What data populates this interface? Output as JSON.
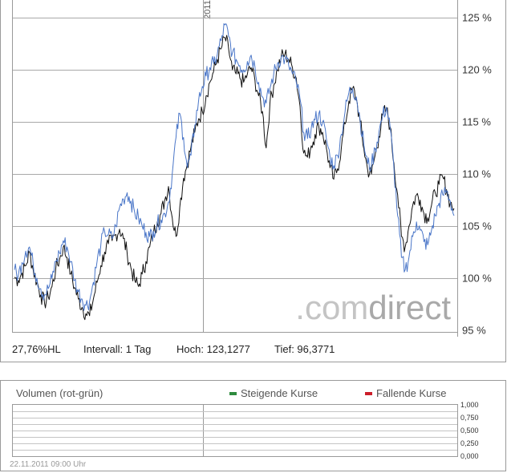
{
  "chart_data": [
    {
      "type": "line",
      "x_start": "",
      "x_ticks": [
        "2011"
      ],
      "y_ticks": [
        "125 %",
        "120 %",
        "115 %",
        "110 %",
        "105 %",
        "100 %",
        "95 %"
      ],
      "ylim": [
        95,
        126
      ],
      "grid": true,
      "series": [
        {
          "color": "#111111",
          "values": [
            100.1,
            99.8,
            100.5,
            101.2,
            102.5,
            100.8,
            99.6,
            98.4,
            97.6,
            98.2,
            99.2,
            100.9,
            101.8,
            103.0,
            102.0,
            100.4,
            99.1,
            98.0,
            97.2,
            96.6,
            96.4,
            98.0,
            99.6,
            101.2,
            102.5,
            103.3,
            103.6,
            104.2,
            104.7,
            103.8,
            102.4,
            101.0,
            99.8,
            99.2,
            100.4,
            101.6,
            103.0,
            104.3,
            105.4,
            106.2,
            107.5,
            108.8,
            105.8,
            104.0,
            106.8,
            109.6,
            111.0,
            112.6,
            114.0,
            115.3,
            116.0,
            117.5,
            118.8,
            119.8,
            121.0,
            122.0,
            123.1,
            122.0,
            120.0,
            119.6,
            119.2,
            118.8,
            119.6,
            120.2,
            119.0,
            117.5,
            116.0,
            112.5,
            116.8,
            118.5,
            120.0,
            121.2,
            121.5,
            121.0,
            120.2,
            119.2,
            116.5,
            112.0,
            111.6,
            112.7,
            113.8,
            114.6,
            114.0,
            112.5,
            110.6,
            109.5,
            110.5,
            112.5,
            114.8,
            117.0,
            118.2,
            117.2,
            115.0,
            112.4,
            110.4,
            110.0,
            111.8,
            113.6,
            115.6,
            116.2,
            114.5,
            111.0,
            108.0,
            104.0,
            103.0,
            105.0,
            107.0,
            108.0,
            107.5,
            106.2,
            105.8,
            107.0,
            108.2,
            109.0,
            109.7,
            108.5,
            107.2,
            106.7
          ]
        },
        {
          "color": "#4a76c8",
          "values": [
            100.8,
            100.2,
            101.5,
            102.6,
            103.0,
            101.3,
            100.0,
            99.0,
            98.4,
            99.0,
            100.0,
            101.6,
            102.4,
            103.6,
            103.0,
            101.6,
            99.8,
            98.7,
            98.0,
            97.4,
            97.8,
            99.6,
            101.6,
            103.2,
            104.5,
            104.2,
            103.8,
            105.0,
            106.8,
            107.6,
            108.2,
            107.4,
            106.3,
            105.8,
            105.0,
            104.4,
            104.0,
            104.5,
            105.2,
            105.6,
            106.2,
            107.3,
            110.0,
            113.5,
            115.8,
            113.5,
            110.6,
            111.8,
            114.7,
            117.0,
            118.4,
            119.4,
            120.2,
            120.6,
            121.5,
            122.8,
            124.3,
            123.2,
            121.6,
            121.0,
            120.4,
            120.0,
            120.8,
            121.4,
            120.3,
            118.8,
            117.4,
            116.8,
            118.2,
            119.6,
            120.6,
            121.2,
            121.0,
            120.4,
            119.6,
            118.8,
            117.2,
            114.0,
            113.4,
            114.4,
            115.2,
            115.8,
            115.0,
            113.4,
            111.6,
            110.8,
            111.8,
            113.8,
            116.0,
            117.8,
            118.2,
            117.4,
            115.2,
            112.8,
            111.0,
            110.8,
            112.4,
            114.0,
            115.6,
            116.4,
            114.4,
            110.5,
            106.0,
            102.0,
            100.8,
            102.0,
            104.0,
            105.4,
            104.6,
            103.5,
            103.2,
            104.6,
            106.0,
            107.2,
            108.0,
            108.4,
            107.4,
            106.0
          ]
        }
      ],
      "stats": {
        "hl": "27,76%HL",
        "interval": "Intervall: 1 Tag",
        "high": "Hoch: 123,1277",
        "low": "Tief: 96,3771"
      },
      "watermark": {
        "gray": ".com",
        "dark": "direct"
      }
    },
    {
      "type": "bar",
      "title": "Volumen (rot-grün)",
      "legend_up": "Steigende Kurse",
      "legend_down": "Fallende Kurse",
      "legend_up_color": "#2e8b3e",
      "legend_down_color": "#cc1e2a",
      "y_ticks": [
        "1,000",
        "0,750",
        "0,500",
        "0,250",
        "0,000"
      ],
      "ylim": [
        0,
        1
      ],
      "values": [],
      "timestamp": "22.11.2011 09:00 Uhr"
    }
  ]
}
